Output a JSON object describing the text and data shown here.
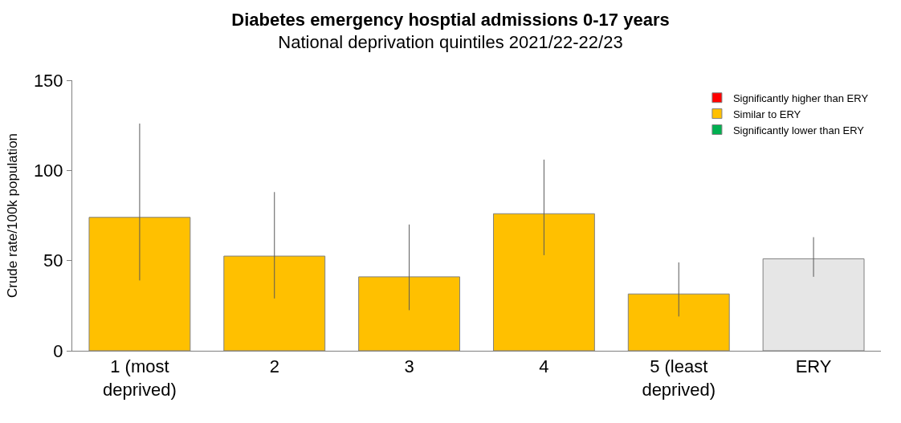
{
  "chart_data": {
    "type": "bar",
    "title": "Diabetes emergency hosptial admissions 0-17 years",
    "subtitle": "National deprivation quintiles 2021/22-22/23",
    "ylabel": "Crude rate/100k population",
    "categories": [
      "1 (most deprived)",
      "2",
      "3",
      "4",
      "5 (least deprived)",
      "ERY"
    ],
    "series": [
      {
        "name": "Significantly higher than ERY",
        "color": "#ff0000",
        "values": [
          null,
          null,
          null,
          null,
          null,
          null
        ],
        "errors": [
          null,
          null,
          null,
          null,
          null,
          null
        ]
      },
      {
        "name": "Similar to ERY",
        "color": "#ffc000",
        "values": [
          74,
          52.5,
          41,
          76,
          31.5,
          null
        ],
        "errors": [
          [
            39,
            126
          ],
          [
            29,
            88
          ],
          [
            22.5,
            70
          ],
          [
            53,
            106
          ],
          [
            19,
            49
          ],
          null
        ]
      },
      {
        "name": "Significantly lower than ERY",
        "color": "#00b050",
        "values": [
          null,
          null,
          null,
          null,
          null,
          null
        ],
        "errors": [
          null,
          null,
          null,
          null,
          null,
          null
        ]
      },
      {
        "color": "#e6e6e6",
        "values": [
          null,
          null,
          null,
          null,
          null,
          51
        ],
        "errors": [
          null,
          null,
          null,
          null,
          null,
          [
            41,
            63
          ]
        ]
      }
    ],
    "ylim": [
      0,
      150
    ],
    "yticks": [
      0,
      50,
      100,
      150
    ],
    "legend": "top right"
  }
}
